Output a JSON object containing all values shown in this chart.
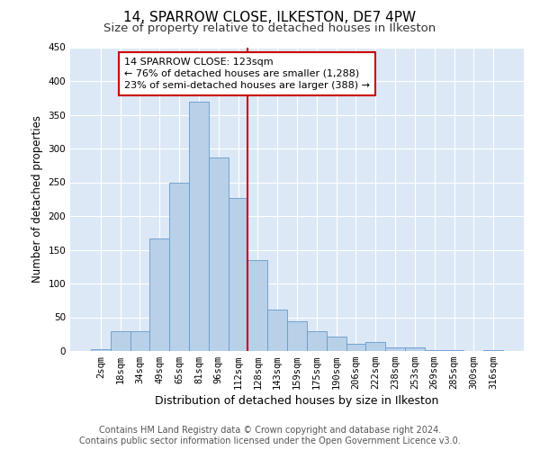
{
  "title": "14, SPARROW CLOSE, ILKESTON, DE7 4PW",
  "subtitle": "Size of property relative to detached houses in Ilkeston",
  "xlabel": "Distribution of detached houses by size in Ilkeston",
  "ylabel": "Number of detached properties",
  "footer_line1": "Contains HM Land Registry data © Crown copyright and database right 2024.",
  "footer_line2": "Contains public sector information licensed under the Open Government Licence v3.0.",
  "categories": [
    "2sqm",
    "18sqm",
    "34sqm",
    "49sqm",
    "65sqm",
    "81sqm",
    "96sqm",
    "112sqm",
    "128sqm",
    "143sqm",
    "159sqm",
    "175sqm",
    "190sqm",
    "206sqm",
    "222sqm",
    "238sqm",
    "253sqm",
    "269sqm",
    "285sqm",
    "300sqm",
    "316sqm"
  ],
  "values": [
    3,
    30,
    30,
    167,
    250,
    370,
    287,
    227,
    135,
    62,
    44,
    30,
    22,
    11,
    13,
    5,
    5,
    2,
    1,
    0,
    1
  ],
  "bar_color": "#b8d0e8",
  "bar_edge_color": "#6699cc",
  "vline_index": 8,
  "annotation_text": "14 SPARROW CLOSE: 123sqm\n← 76% of detached houses are smaller (1,288)\n23% of semi-detached houses are larger (388) →",
  "annotation_box_facecolor": "#ffffff",
  "annotation_box_edgecolor": "#cc0000",
  "vline_color": "#cc0000",
  "ylim": [
    0,
    450
  ],
  "yticks": [
    0,
    50,
    100,
    150,
    200,
    250,
    300,
    350,
    400,
    450
  ],
  "plot_bg_color": "#dce8f5",
  "fig_bg_color": "#ffffff",
  "grid_color": "#ffffff",
  "title_fontsize": 11,
  "subtitle_fontsize": 9.5,
  "xlabel_fontsize": 9,
  "ylabel_fontsize": 8.5,
  "tick_fontsize": 7.5,
  "annotation_fontsize": 8,
  "footer_fontsize": 7
}
